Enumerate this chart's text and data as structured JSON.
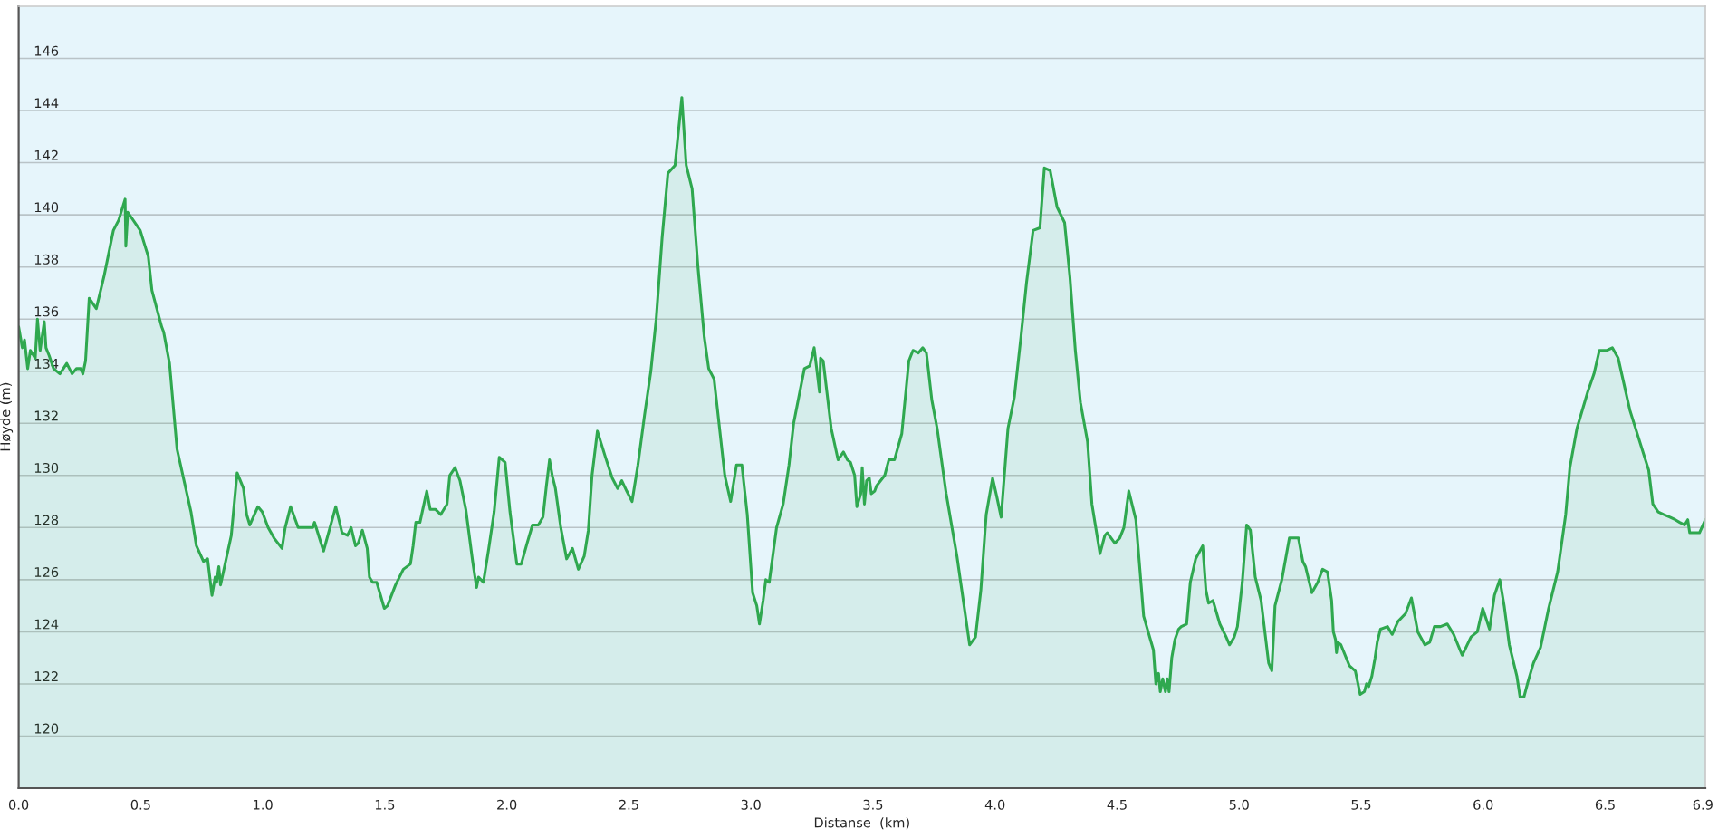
{
  "chart_data": {
    "type": "area",
    "xlabel": "Distanse  (km)",
    "ylabel": "Høyde (m)",
    "xlim": [
      0,
      6.91
    ],
    "ylim": [
      118,
      148
    ],
    "xticks": [
      {
        "value": 0,
        "label": "0.0"
      },
      0.5,
      {
        "value": 1,
        "label": "1.0"
      },
      1.5,
      {
        "value": 2,
        "label": "2.0"
      },
      2.5,
      {
        "value": 3,
        "label": "3.0"
      },
      3.5,
      {
        "value": 4,
        "label": "4.0"
      },
      4.5,
      {
        "value": 5,
        "label": "5.0"
      },
      5.5,
      {
        "value": 6,
        "label": "6.0"
      },
      6.5,
      6.9
    ],
    "yticks": [
      120,
      122,
      124,
      126,
      128,
      130,
      132,
      134,
      136,
      138,
      140,
      142,
      144,
      146
    ],
    "grid": "y",
    "x": [
      0.0,
      0.015,
      0.024,
      0.037,
      0.048,
      0.068,
      0.077,
      0.088,
      0.105,
      0.112,
      0.125,
      0.143,
      0.169,
      0.197,
      0.219,
      0.237,
      0.254,
      0.263,
      0.274,
      0.289,
      0.318,
      0.351,
      0.388,
      0.41,
      0.436,
      0.439,
      0.447,
      0.498,
      0.531,
      0.546,
      0.586,
      0.594,
      0.618,
      0.649,
      0.706,
      0.728,
      0.757,
      0.774,
      0.792,
      0.805,
      0.811,
      0.82,
      0.827,
      0.871,
      0.895,
      0.921,
      0.934,
      0.947,
      0.98,
      0.998,
      1.022,
      1.046,
      1.079,
      1.092,
      1.114,
      1.145,
      1.205,
      1.212,
      1.249,
      1.299,
      1.325,
      1.347,
      1.362,
      1.38,
      1.391,
      1.408,
      1.428,
      1.437,
      1.45,
      1.467,
      1.498,
      1.511,
      1.544,
      1.576,
      1.605,
      1.616,
      1.627,
      1.644,
      1.672,
      1.686,
      1.707,
      1.729,
      1.755,
      1.766,
      1.788,
      1.808,
      1.832,
      1.86,
      1.876,
      1.884,
      1.904,
      1.926,
      1.948,
      1.969,
      1.993,
      2.013,
      2.041,
      2.059,
      2.083,
      2.105,
      2.129,
      2.148,
      2.162,
      2.175,
      2.186,
      2.199,
      2.221,
      2.245,
      2.269,
      2.293,
      2.317,
      2.334,
      2.349,
      2.371,
      2.404,
      2.432,
      2.454,
      2.471,
      2.491,
      2.513,
      2.537,
      2.564,
      2.59,
      2.612,
      2.636,
      2.66,
      2.689,
      2.717,
      2.735,
      2.759,
      2.783,
      2.809,
      2.827,
      2.849,
      2.893,
      2.917,
      2.941,
      2.963,
      2.985,
      3.007,
      3.024,
      3.035,
      3.05,
      3.061,
      3.075,
      3.105,
      3.132,
      3.156,
      3.175,
      3.219,
      3.241,
      3.259,
      3.281,
      3.285,
      3.296,
      3.329,
      3.357,
      3.379,
      3.395,
      3.408,
      3.425,
      3.434,
      3.45,
      3.456,
      3.465,
      3.474,
      3.485,
      3.493,
      3.507,
      3.515,
      3.548,
      3.565,
      3.588,
      3.618,
      3.647,
      3.664,
      3.686,
      3.704,
      3.719,
      3.741,
      3.763,
      3.8,
      3.844,
      3.896,
      3.92,
      3.942,
      3.964,
      3.99,
      4.007,
      4.025,
      4.053,
      4.079,
      4.106,
      4.129,
      4.156,
      4.184,
      4.202,
      4.226,
      4.254,
      4.285,
      4.307,
      4.329,
      4.35,
      4.379,
      4.397,
      4.43,
      4.45,
      4.46,
      4.491,
      4.511,
      4.528,
      4.548,
      4.577,
      4.609,
      4.649,
      4.659,
      4.67,
      4.677,
      4.687,
      4.698,
      4.706,
      4.713,
      4.724,
      4.737,
      4.752,
      4.763,
      4.785,
      4.8,
      4.822,
      4.851,
      4.864,
      4.875,
      4.893,
      4.921,
      4.947,
      4.961,
      4.98,
      4.993,
      5.013,
      5.031,
      5.046,
      5.066,
      5.09,
      5.121,
      5.134,
      5.147,
      5.175,
      5.206,
      5.221,
      5.243,
      5.261,
      5.272,
      5.298,
      5.322,
      5.342,
      5.362,
      5.379,
      5.386,
      5.395,
      5.399,
      5.404,
      5.417,
      5.452,
      5.476,
      5.496,
      5.513,
      5.522,
      5.531,
      5.544,
      5.557,
      5.566,
      5.579,
      5.608,
      5.627,
      5.651,
      5.682,
      5.706,
      5.732,
      5.761,
      5.781,
      5.8,
      5.825,
      5.853,
      5.879,
      5.914,
      5.95,
      5.976,
      5.998,
      6.026,
      6.046,
      6.068,
      6.086,
      6.107,
      6.138,
      6.151,
      6.167,
      6.184,
      6.206,
      6.235,
      6.268,
      6.305,
      6.338,
      6.355,
      6.384,
      6.428,
      6.454,
      6.476,
      6.507,
      6.529,
      6.553,
      6.601,
      6.678,
      6.695,
      6.717,
      6.739,
      6.765,
      6.787,
      6.805,
      6.825,
      6.838,
      6.846,
      6.864,
      6.886,
      6.91
    ],
    "series": [
      {
        "color": "#2fa84f",
        "values": [
          135.7,
          134.9,
          135.2,
          134.1,
          134.8,
          134.5,
          136.0,
          134.8,
          135.9,
          134.9,
          134.6,
          134.1,
          133.9,
          134.3,
          133.9,
          134.1,
          134.1,
          133.9,
          134.4,
          136.8,
          136.4,
          137.7,
          139.4,
          139.8,
          140.6,
          138.8,
          140.1,
          139.4,
          138.4,
          137.1,
          135.7,
          135.5,
          134.3,
          131.0,
          128.6,
          127.3,
          126.7,
          126.8,
          125.4,
          126.1,
          125.9,
          126.5,
          125.8,
          127.7,
          130.1,
          129.5,
          128.5,
          128.1,
          128.8,
          128.6,
          128.0,
          127.6,
          127.2,
          128.0,
          128.8,
          128.0,
          128.0,
          128.2,
          127.1,
          128.8,
          127.8,
          127.7,
          128.0,
          127.3,
          127.4,
          127.9,
          127.2,
          126.1,
          125.9,
          125.9,
          124.9,
          125.0,
          125.8,
          126.4,
          126.6,
          127.3,
          128.2,
          128.2,
          129.4,
          128.7,
          128.7,
          128.5,
          128.9,
          130.0,
          130.3,
          129.8,
          128.7,
          126.7,
          125.7,
          126.1,
          125.9,
          127.2,
          128.6,
          130.7,
          130.5,
          128.6,
          126.6,
          126.6,
          127.4,
          128.1,
          128.1,
          128.4,
          129.6,
          130.6,
          130.0,
          129.5,
          128.0,
          126.8,
          127.2,
          126.4,
          126.9,
          127.9,
          130.0,
          131.7,
          130.7,
          129.9,
          129.5,
          129.8,
          129.4,
          129.0,
          130.4,
          132.3,
          134.0,
          136.0,
          139.1,
          141.6,
          141.9,
          144.5,
          141.9,
          141.0,
          138.0,
          135.3,
          134.1,
          133.7,
          130.0,
          129.0,
          130.4,
          130.4,
          128.5,
          125.5,
          125.0,
          124.3,
          125.2,
          126.0,
          125.9,
          128.0,
          128.9,
          130.4,
          132.0,
          134.1,
          134.2,
          134.9,
          133.2,
          134.5,
          134.4,
          131.8,
          130.6,
          130.9,
          130.6,
          130.5,
          130.0,
          128.8,
          129.3,
          130.3,
          128.9,
          129.8,
          129.9,
          129.3,
          129.4,
          129.6,
          130.0,
          130.6,
          130.6,
          131.6,
          134.4,
          134.8,
          134.7,
          134.9,
          134.7,
          132.9,
          131.8,
          129.3,
          126.9,
          123.5,
          123.8,
          125.6,
          128.5,
          129.9,
          129.2,
          128.4,
          131.8,
          133.0,
          135.3,
          137.4,
          139.4,
          139.5,
          141.8,
          141.7,
          140.3,
          139.7,
          137.6,
          134.8,
          132.8,
          131.3,
          128.9,
          127.0,
          127.7,
          127.8,
          127.4,
          127.6,
          128.0,
          129.4,
          128.3,
          124.6,
          123.3,
          122.0,
          122.4,
          121.7,
          122.2,
          121.7,
          122.2,
          121.7,
          123.0,
          123.7,
          124.1,
          124.2,
          124.3,
          125.9,
          126.8,
          127.3,
          125.6,
          125.1,
          125.2,
          124.3,
          123.8,
          123.5,
          123.8,
          124.2,
          125.9,
          128.1,
          127.9,
          126.1,
          125.2,
          122.8,
          122.5,
          125.0,
          126.0,
          127.6,
          127.6,
          127.6,
          126.7,
          126.5,
          125.5,
          125.9,
          126.4,
          126.3,
          125.2,
          124.0,
          123.7,
          123.2,
          123.6,
          123.5,
          122.7,
          122.5,
          121.6,
          121.7,
          122.0,
          121.9,
          122.3,
          123.0,
          123.6,
          124.1,
          124.2,
          123.9,
          124.4,
          124.7,
          125.3,
          124.0,
          123.5,
          123.6,
          124.2,
          124.2,
          124.3,
          123.9,
          123.1,
          123.8,
          124.0,
          124.9,
          124.1,
          125.4,
          126.0,
          125.0,
          123.5,
          122.3,
          121.5,
          121.5,
          122.1,
          122.8,
          123.4,
          124.9,
          126.3,
          128.5,
          130.3,
          131.8,
          133.2,
          133.9,
          134.8,
          134.8,
          134.9,
          134.5,
          132.5,
          130.2,
          128.9,
          128.6,
          128.5,
          128.4,
          128.3,
          128.2,
          128.1,
          128.3,
          127.8,
          127.8,
          127.8,
          128.3
        ]
      }
    ]
  }
}
